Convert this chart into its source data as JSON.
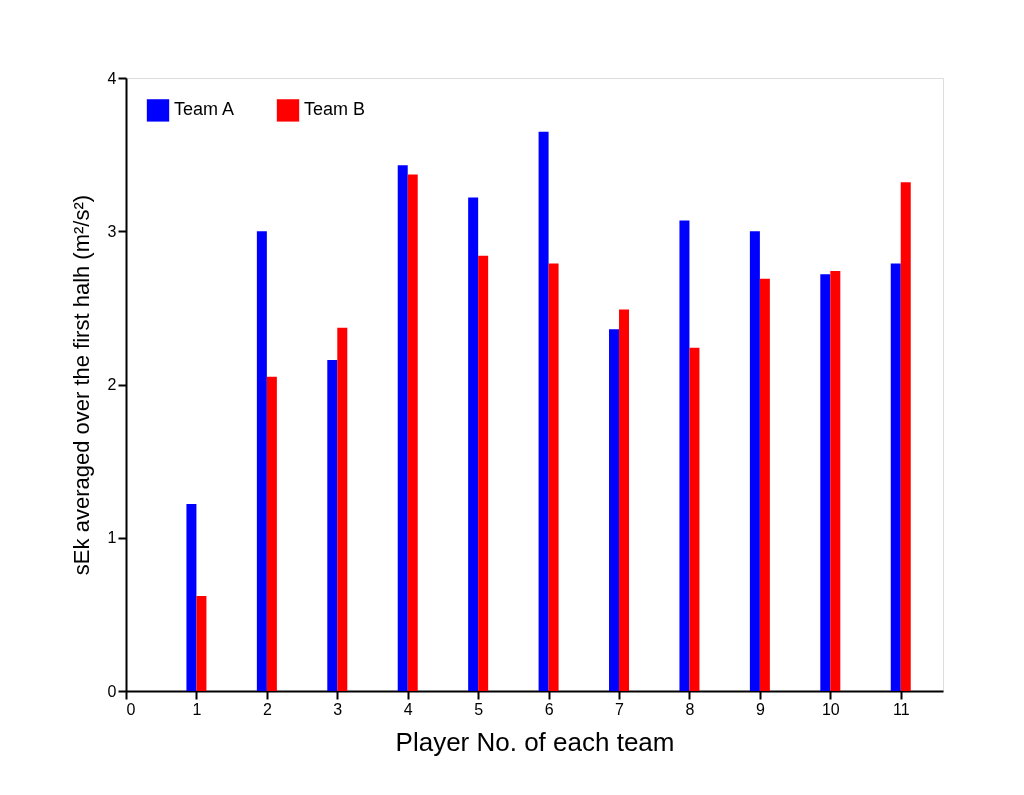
{
  "chart_data": {
    "type": "bar",
    "xlabel": "Player No. of each team",
    "ylabel": "sEk averaged over the first halh  (m²/s²)",
    "x": [
      1,
      2,
      3,
      4,
      5,
      6,
      7,
      8,
      9,
      10,
      11
    ],
    "series": [
      {
        "name": "Team A",
        "color": "#0000ff",
        "values": [
          1.22,
          3.0,
          2.16,
          3.43,
          3.22,
          3.65,
          2.36,
          3.07,
          3.0,
          2.72,
          2.79
        ]
      },
      {
        "name": "Team B",
        "color": "#ff0000",
        "values": [
          0.62,
          2.05,
          2.37,
          3.37,
          2.84,
          2.79,
          2.49,
          2.24,
          2.69,
          2.74,
          3.32
        ]
      }
    ],
    "xlim": [
      0,
      11.6
    ],
    "xticks": [
      0,
      1,
      2,
      3,
      4,
      5,
      6,
      7,
      8,
      9,
      10,
      11
    ],
    "ylim": [
      0,
      4
    ],
    "yticks": [
      0,
      1,
      2,
      3,
      4
    ],
    "grid": false,
    "legend": "top left"
  }
}
